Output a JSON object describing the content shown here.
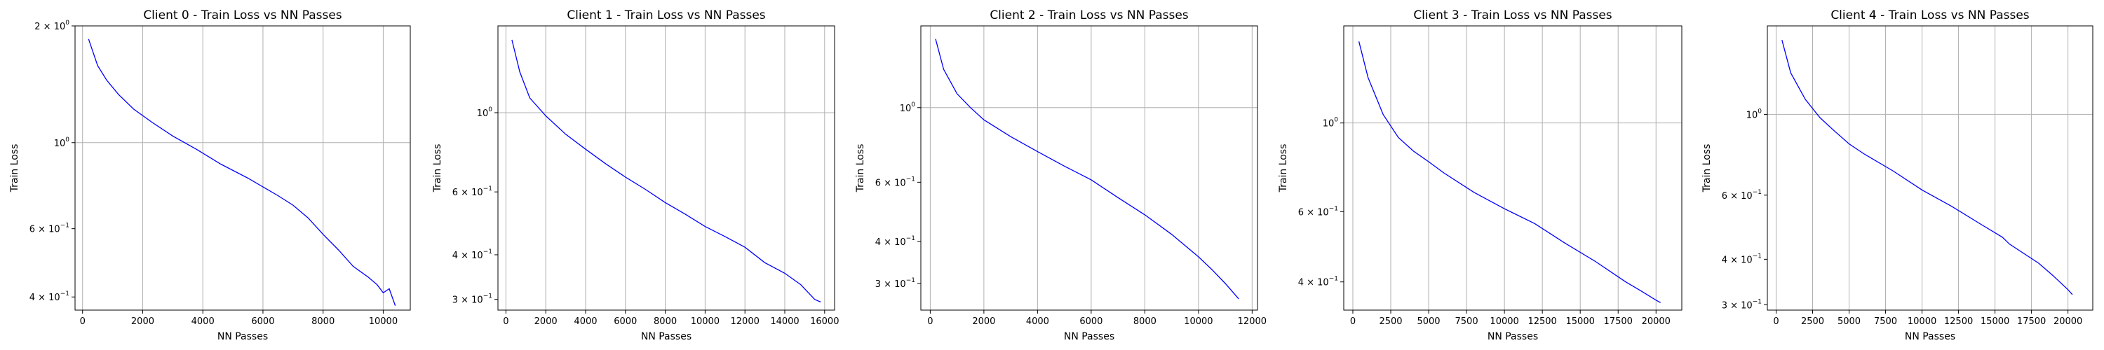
{
  "colors": {
    "line": "#0000ff",
    "grid": "#b0b0b0",
    "axes": "#000000"
  },
  "chart_data": [
    {
      "type": "line",
      "title": "Client 0 - Train Loss vs NN Passes",
      "xlabel": "NN Passes",
      "ylabel": "Train Loss",
      "yscale": "log",
      "grid": true,
      "xlim": [
        -250,
        10900
      ],
      "ylim": [
        0.37,
        2.0
      ],
      "xticks": [
        0,
        2000,
        4000,
        6000,
        8000,
        10000
      ],
      "xtick_labels": [
        "0",
        "2000",
        "4000",
        "6000",
        "8000",
        "10000"
      ],
      "yticks": [
        {
          "value": 2.0,
          "base": "2 × 10",
          "exp": "0"
        },
        {
          "value": 1.0,
          "base": "10",
          "exp": "0"
        },
        {
          "value": 0.6,
          "base": "6 × 10",
          "exp": "−1"
        },
        {
          "value": 0.4,
          "base": "4 × 10",
          "exp": "−1"
        }
      ],
      "series": [
        {
          "x": [
            200,
            500,
            800,
            1200,
            1700,
            2300,
            3000,
            3800,
            4600,
            5500,
            6500,
            7000,
            7500,
            8000,
            8500,
            9000,
            9500,
            9800,
            10000,
            10200,
            10400
          ],
          "y": [
            1.85,
            1.58,
            1.45,
            1.33,
            1.22,
            1.13,
            1.04,
            0.96,
            0.88,
            0.81,
            0.73,
            0.69,
            0.64,
            0.58,
            0.53,
            0.48,
            0.45,
            0.43,
            0.41,
            0.42,
            0.38
          ]
        }
      ]
    },
    {
      "type": "line",
      "title": "Client 1 - Train Loss vs NN Passes",
      "xlabel": "NN Passes",
      "ylabel": "Train Loss",
      "yscale": "log",
      "grid": true,
      "xlim": [
        -400,
        16500
      ],
      "ylim": [
        0.28,
        1.75
      ],
      "xticks": [
        0,
        2000,
        4000,
        6000,
        8000,
        10000,
        12000,
        14000,
        16000
      ],
      "xtick_labels": [
        "0",
        "2000",
        "4000",
        "6000",
        "8000",
        "10000",
        "12000",
        "14000",
        "16000"
      ],
      "yticks": [
        {
          "value": 1.0,
          "base": "10",
          "exp": "0"
        },
        {
          "value": 0.6,
          "base": "6 × 10",
          "exp": "−1"
        },
        {
          "value": 0.4,
          "base": "4 × 10",
          "exp": "−1"
        },
        {
          "value": 0.3,
          "base": "3 × 10",
          "exp": "−1"
        }
      ],
      "series": [
        {
          "x": [
            300,
            700,
            1200,
            2000,
            3000,
            4000,
            5000,
            6000,
            7000,
            8000,
            9000,
            10000,
            11000,
            12000,
            13000,
            14000,
            14800,
            15500,
            15800
          ],
          "y": [
            1.6,
            1.3,
            1.1,
            0.98,
            0.87,
            0.79,
            0.72,
            0.66,
            0.61,
            0.56,
            0.52,
            0.48,
            0.45,
            0.42,
            0.38,
            0.355,
            0.33,
            0.3,
            0.295
          ]
        }
      ]
    },
    {
      "type": "line",
      "title": "Client 2 - Train Loss vs NN Passes",
      "xlabel": "NN Passes",
      "ylabel": "Train Loss",
      "yscale": "log",
      "grid": true,
      "xlim": [
        -350,
        12200
      ],
      "ylim": [
        0.25,
        1.75
      ],
      "xticks": [
        0,
        2000,
        4000,
        6000,
        8000,
        10000,
        12000
      ],
      "xtick_labels": [
        "0",
        "2000",
        "4000",
        "6000",
        "8000",
        "10000",
        "12000"
      ],
      "yticks": [
        {
          "value": 1.0,
          "base": "10",
          "exp": "0"
        },
        {
          "value": 0.6,
          "base": "6 × 10",
          "exp": "−1"
        },
        {
          "value": 0.4,
          "base": "4 × 10",
          "exp": "−1"
        },
        {
          "value": 0.3,
          "base": "3 × 10",
          "exp": "−1"
        }
      ],
      "series": [
        {
          "x": [
            200,
            500,
            1000,
            1500,
            2000,
            3000,
            4000,
            5000,
            6000,
            7000,
            8000,
            9000,
            10000,
            10500,
            11000,
            11500
          ],
          "y": [
            1.6,
            1.3,
            1.1,
            1.0,
            0.92,
            0.82,
            0.74,
            0.67,
            0.61,
            0.54,
            0.48,
            0.42,
            0.36,
            0.33,
            0.3,
            0.27
          ]
        }
      ]
    },
    {
      "type": "line",
      "title": "Client 3 - Train Loss vs NN Passes",
      "xlabel": "NN Passes",
      "ylabel": "Train Loss",
      "yscale": "log",
      "grid": true,
      "xlim": [
        -600,
        21700
      ],
      "ylim": [
        0.34,
        1.75
      ],
      "xticks": [
        0,
        2500,
        5000,
        7500,
        10000,
        12500,
        15000,
        17500,
        20000
      ],
      "xtick_labels": [
        "0",
        "2500",
        "5000",
        "7500",
        "10000",
        "12500",
        "15000",
        "17500",
        "20000"
      ],
      "yticks": [
        {
          "value": 1.0,
          "base": "10",
          "exp": "0"
        },
        {
          "value": 0.6,
          "base": "6 × 10",
          "exp": "−1"
        },
        {
          "value": 0.4,
          "base": "4 × 10",
          "exp": "−1"
        }
      ],
      "series": [
        {
          "x": [
            400,
            1000,
            2000,
            3000,
            4000,
            5000,
            6000,
            8000,
            10000,
            12000,
            14000,
            16000,
            18000,
            19000,
            20000,
            20300
          ],
          "y": [
            1.6,
            1.3,
            1.05,
            0.92,
            0.85,
            0.8,
            0.75,
            0.67,
            0.61,
            0.56,
            0.5,
            0.45,
            0.4,
            0.38,
            0.36,
            0.355
          ]
        }
      ]
    },
    {
      "type": "line",
      "title": "Client 4 - Train Loss vs NN Passes",
      "xlabel": "NN Passes",
      "ylabel": "Train Loss",
      "yscale": "log",
      "grid": true,
      "xlim": [
        -600,
        21700
      ],
      "ylim": [
        0.29,
        1.75
      ],
      "xticks": [
        0,
        2500,
        5000,
        7500,
        10000,
        12500,
        15000,
        17500,
        20000
      ],
      "xtick_labels": [
        "0",
        "2500",
        "5000",
        "7500",
        "10000",
        "12500",
        "15000",
        "17500",
        "20000"
      ],
      "yticks": [
        {
          "value": 1.0,
          "base": "10",
          "exp": "0"
        },
        {
          "value": 0.6,
          "base": "6 × 10",
          "exp": "−1"
        },
        {
          "value": 0.4,
          "base": "4 × 10",
          "exp": "−1"
        },
        {
          "value": 0.3,
          "base": "3 × 10",
          "exp": "−1"
        }
      ],
      "series": [
        {
          "x": [
            400,
            1000,
            2000,
            3000,
            4000,
            5000,
            6000,
            8000,
            10000,
            12000,
            14000,
            15500,
            16000,
            18000,
            19000,
            20000,
            20300
          ],
          "y": [
            1.6,
            1.3,
            1.1,
            0.98,
            0.9,
            0.83,
            0.78,
            0.7,
            0.62,
            0.56,
            0.5,
            0.46,
            0.44,
            0.39,
            0.36,
            0.33,
            0.32
          ]
        }
      ]
    }
  ]
}
